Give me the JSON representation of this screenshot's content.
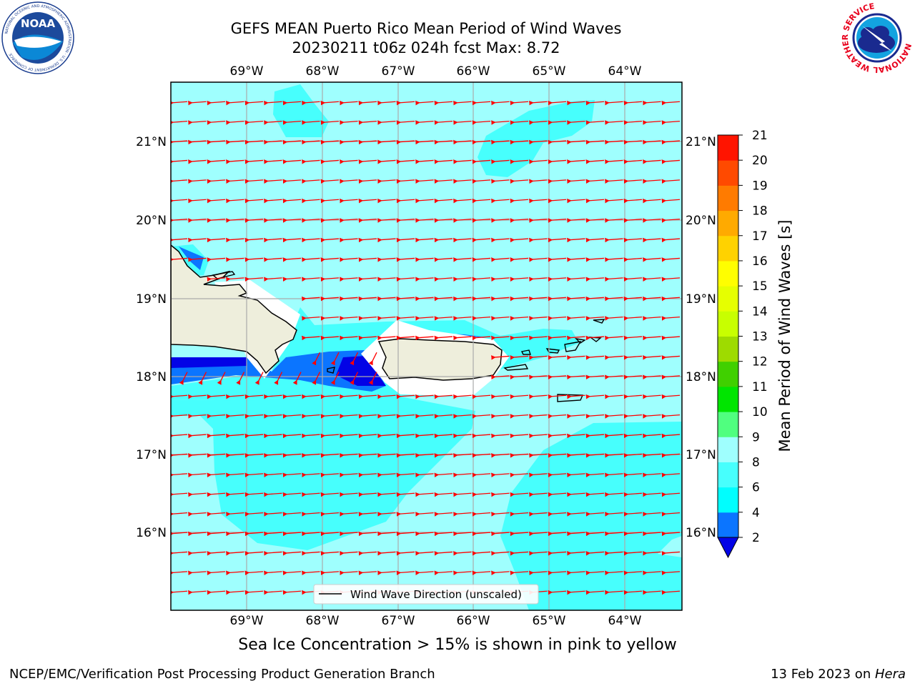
{
  "header": {
    "title_line1": "GEFS MEAN Puerto Rico Mean Period of Wind Waves",
    "title_line2": "20230211 t06z 024h fcst   Max: 8.72"
  },
  "logos": {
    "noaa_text": "NOAA",
    "noaa_ring_text": "NATIONAL OCEANIC AND ATMOSPHERIC ADMINISTRATION · U.S. DEPARTMENT OF COMMERCE",
    "nws_ring_text": "NATIONAL WEATHER SERVICE"
  },
  "map": {
    "lon_labels": [
      "69°W",
      "68°W",
      "67°W",
      "66°W",
      "65°W",
      "64°W"
    ],
    "lat_labels": [
      "21°N",
      "20°N",
      "19°N",
      "18°N",
      "17°N",
      "16°N"
    ],
    "legend_label": "Wind Wave Direction (unscaled)",
    "colors": {
      "ocean_light": "#9ffffe",
      "ocean_mid": "#47fffd",
      "blue_mid": "#0b75ff",
      "blue_dark": "#0303e6",
      "land": "#eeeedc",
      "arrow": "#ff0000",
      "grid": "#aaaaaa"
    }
  },
  "colorbar": {
    "label": "Mean Period of Wind Waves [s]",
    "ticks": [
      "2",
      "4",
      "6",
      "8",
      "9",
      "10",
      "11",
      "12",
      "13",
      "14",
      "15",
      "16",
      "17",
      "18",
      "19",
      "20",
      "21"
    ],
    "colors": [
      "#0303e6",
      "#0b75ff",
      "#00fefe",
      "#47fffd",
      "#9ffffe",
      "#50ff7f",
      "#00e500",
      "#40d000",
      "#9edb00",
      "#c8ff00",
      "#e6ff00",
      "#fffe00",
      "#ffd200",
      "#ffaa00",
      "#ff7b00",
      "#ff4a00",
      "#ff1400",
      "#ff0000"
    ]
  },
  "footer": {
    "note": "Sea Ice Concentration > 15% is shown in pink to yellow",
    "left": "NCEP/EMC/Verification Post Processing Product Generation Branch",
    "right_prefix": "13 Feb 2023 on ",
    "right_host": "Hera"
  }
}
